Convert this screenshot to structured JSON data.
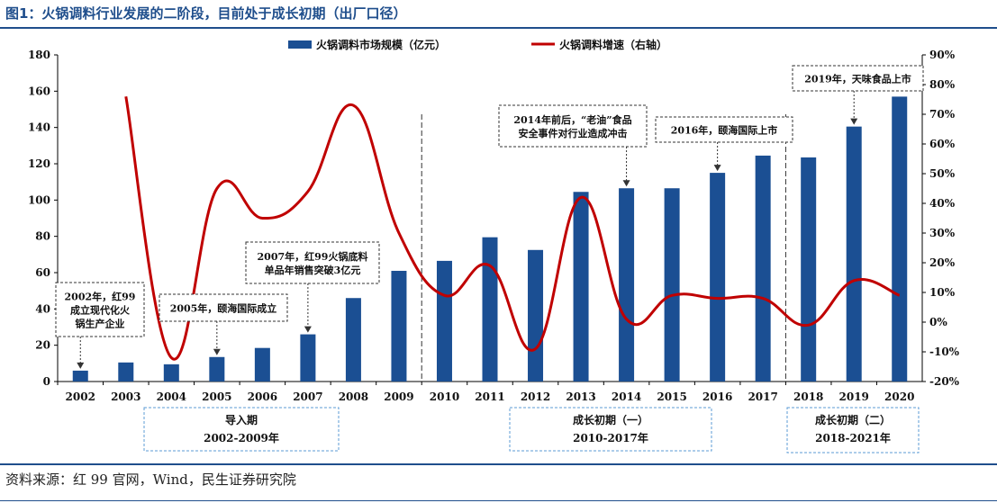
{
  "title": "图1：火锅调料行业发展的二阶段，目前处于成长初期（出厂口径）",
  "source": "资料来源：红 99 官网，Wind，民生证券研究院",
  "colors": {
    "bar": "#1b4f93",
    "line": "#c00000",
    "title": "#1f4e8c",
    "box_border": "#5b9bd5"
  },
  "chart_data": {
    "type": "bar",
    "categories": [
      "2002",
      "2003",
      "2004",
      "2005",
      "2006",
      "2007",
      "2008",
      "2009",
      "2010",
      "2011",
      "2012",
      "2013",
      "2014",
      "2015",
      "2016",
      "2017",
      "2018",
      "2019",
      "2020"
    ],
    "series": [
      {
        "name": "火锅调料市场规模（亿元）",
        "type": "bar",
        "axis": "left",
        "values": [
          6,
          10.5,
          9.5,
          13.5,
          18.5,
          26,
          46,
          61,
          66.5,
          79.5,
          72.5,
          104.5,
          106.5,
          106.5,
          115,
          124.5,
          123.5,
          140.5,
          157
        ]
      },
      {
        "name": "火锅调料增速（右轴）",
        "type": "line",
        "axis": "right",
        "values": [
          null,
          76,
          -12,
          45,
          35,
          44,
          73,
          30,
          9,
          19,
          -9,
          42,
          1,
          9,
          8,
          8,
          -1,
          14,
          9
        ]
      }
    ],
    "y_left": {
      "min": 0,
      "max": 180,
      "ticks": [
        "0",
        "20",
        "40",
        "60",
        "80",
        "100",
        "120",
        "140",
        "160",
        "180"
      ]
    },
    "y_right": {
      "min": -20,
      "max": 90,
      "ticks": [
        "-20%",
        "-10%",
        "0%",
        "10%",
        "20%",
        "30%",
        "40%",
        "50%",
        "60%",
        "70%",
        "80%",
        "90%"
      ]
    },
    "grid": false,
    "legend_position": "top-center",
    "dividers_after": [
      "2009",
      "2017"
    ],
    "annotations": [
      {
        "target": "2002",
        "lines": [
          "2002年，红99",
          "成立现代化火",
          "锅生产企业"
        ]
      },
      {
        "target": "2005",
        "lines": [
          "2005年，颐海国际成立"
        ]
      },
      {
        "target": "2007",
        "lines": [
          "2007年，红99火锅底料",
          "单品年销售突破3亿元"
        ]
      },
      {
        "target": "2014",
        "lines": [
          "2014年前后，“老油”食品",
          "安全事件对行业造成冲击"
        ]
      },
      {
        "target": "2016",
        "lines": [
          "2016年，颐海国际上市"
        ]
      },
      {
        "target": "2019",
        "lines": [
          "2019年，天味食品上市"
        ]
      }
    ],
    "phases": [
      {
        "name": "导入期",
        "range": "2002-2009年"
      },
      {
        "name": "成长初期（一）",
        "range": "2010-2017年"
      },
      {
        "name": "成长初期（二）",
        "range": "2018-2021年"
      }
    ]
  }
}
